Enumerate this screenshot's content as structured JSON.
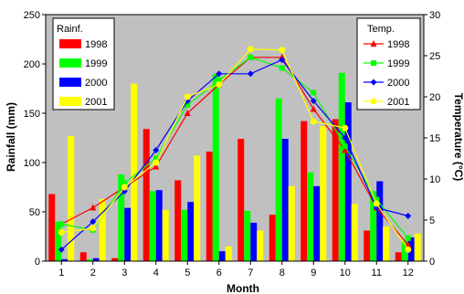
{
  "chart_data": {
    "type": "bar+line",
    "categories": [
      "1",
      "2",
      "3",
      "4",
      "5",
      "6",
      "7",
      "8",
      "9",
      "10",
      "11",
      "12"
    ],
    "xlabel": "Month",
    "ylabel_left": "Rainfall (mm)",
    "ylabel_right": "Temperature (°C)",
    "ylim_left": [
      0,
      250
    ],
    "ylim_right": [
      0,
      30
    ],
    "yticks_left": [
      "0",
      "50",
      "100",
      "150",
      "200",
      "250"
    ],
    "yticks_right": [
      "0",
      "5",
      "10",
      "15",
      "20",
      "25",
      "30"
    ],
    "plot_background": "#c0c0c0",
    "grid": false,
    "rainfall_legend_title": "Rainf.",
    "temperature_legend_title": "Temp.",
    "rainfall_series": [
      {
        "name": "1998",
        "color": "#ff0000",
        "values": [
          68,
          9,
          3,
          134,
          82,
          111,
          124,
          47,
          142,
          144,
          31,
          9
        ]
      },
      {
        "name": "1999",
        "color": "#00ff00",
        "values": [
          40,
          2,
          88,
          71,
          52,
          190,
          51,
          165,
          90,
          191,
          71,
          20
        ]
      },
      {
        "name": "2000",
        "color": "#0000ff",
        "values": [
          2,
          3,
          54,
          72,
          60,
          10,
          39,
          124,
          76,
          161,
          81,
          24
        ]
      },
      {
        "name": "2001",
        "color": "#ffff00",
        "values": [
          127,
          63,
          180,
          52,
          107,
          15,
          31,
          76,
          137,
          58,
          35,
          28
        ]
      }
    ],
    "temperature_series": [
      {
        "name": "1998",
        "color": "#ff0000",
        "marker": "triangle",
        "values": [
          4.5,
          6.5,
          9.0,
          11.5,
          18.0,
          21.5,
          24.8,
          24.8,
          18.5,
          13.5,
          6.5,
          2.0
        ]
      },
      {
        "name": "1999",
        "color": "#00ff00",
        "marker": "square",
        "values": [
          4.5,
          3.8,
          9.5,
          12.5,
          19.0,
          22.0,
          24.8,
          23.5,
          20.5,
          14.0,
          7.5,
          2.8
        ]
      },
      {
        "name": "2000",
        "color": "#0000ff",
        "marker": "diamond",
        "values": [
          1.4,
          4.8,
          8.5,
          13.5,
          19.5,
          22.8,
          22.8,
          24.5,
          19.5,
          15.0,
          6.5,
          5.5
        ]
      },
      {
        "name": "2001",
        "color": "#ffff00",
        "marker": "circle",
        "values": [
          3.5,
          4.0,
          9.0,
          12.0,
          20.0,
          21.5,
          25.8,
          25.7,
          17.0,
          16.2,
          7.0,
          1.4
        ]
      }
    ]
  }
}
